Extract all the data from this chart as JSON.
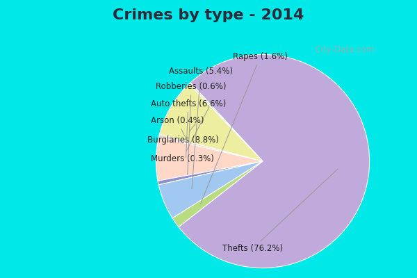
{
  "title": "Crimes by type - 2014",
  "title_fontsize": 16,
  "title_fontweight": "bold",
  "title_color": "#2a2a3a",
  "slices": [
    {
      "label": "Thefts",
      "pct": 76.2,
      "color": "#C0AADC"
    },
    {
      "label": "Murders",
      "pct": 0.3,
      "color": "#E0E8C8"
    },
    {
      "label": "Burglaries",
      "pct": 8.8,
      "color": "#EEEEA0"
    },
    {
      "label": "Arson",
      "pct": 0.4,
      "color": "#FFD8C8"
    },
    {
      "label": "Auto thefts",
      "pct": 6.6,
      "color": "#FFD8C8"
    },
    {
      "label": "Robberies",
      "pct": 0.6,
      "color": "#9090CC"
    },
    {
      "label": "Assaults",
      "pct": 5.4,
      "color": "#A0C8F0"
    },
    {
      "label": "Rapes",
      "pct": 1.6,
      "color": "#B8DC80"
    }
  ],
  "bg_cyan": "#00E8E8",
  "bg_main": "#D8EED8",
  "label_fontsize": 8.5,
  "label_color": "#222222",
  "line_color": "#999999",
  "watermark": "  City-Data.com",
  "watermark_color": "#aaaaaa"
}
